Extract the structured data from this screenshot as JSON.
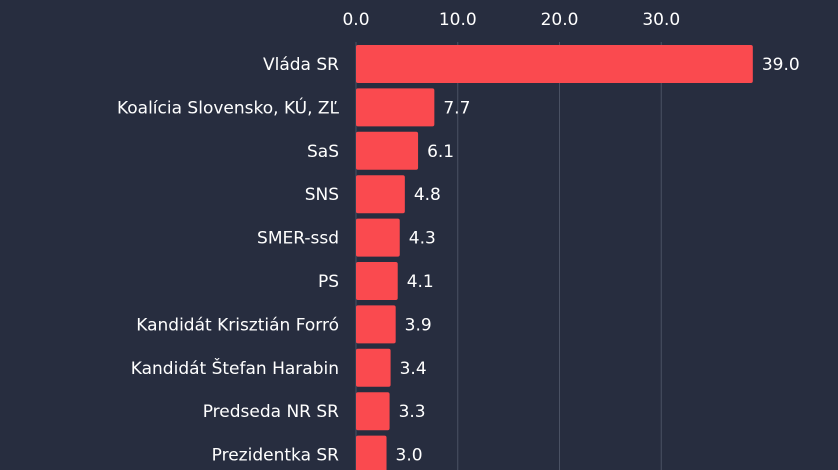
{
  "chart_data": {
    "type": "bar",
    "orientation": "horizontal",
    "categories": [
      "Vláda SR",
      "Koalícia Slovensko, KÚ, ZĽ",
      "SaS",
      "SNS",
      "SMER-ssd",
      "PS",
      "Kandidát Krisztián Forró",
      "Kandidát Štefan Harabin",
      "Predseda NR SR",
      "Prezidentka SR"
    ],
    "values": [
      39.0,
      7.7,
      6.1,
      4.8,
      4.3,
      4.1,
      3.9,
      3.4,
      3.3,
      3.0
    ],
    "value_labels": [
      "39.0",
      "7.7",
      "6.1",
      "4.8",
      "4.3",
      "4.1",
      "3.9",
      "3.4",
      "3.3",
      "3.0"
    ],
    "color": "#fa4a4f",
    "xlim": [
      0,
      40
    ],
    "xticks": [
      {
        "value": 0,
        "label": "0.0"
      },
      {
        "value": 10,
        "label": "10.0"
      },
      {
        "value": 20,
        "label": "20.0"
      },
      {
        "value": 30,
        "label": "30.0"
      }
    ],
    "grid": true
  }
}
